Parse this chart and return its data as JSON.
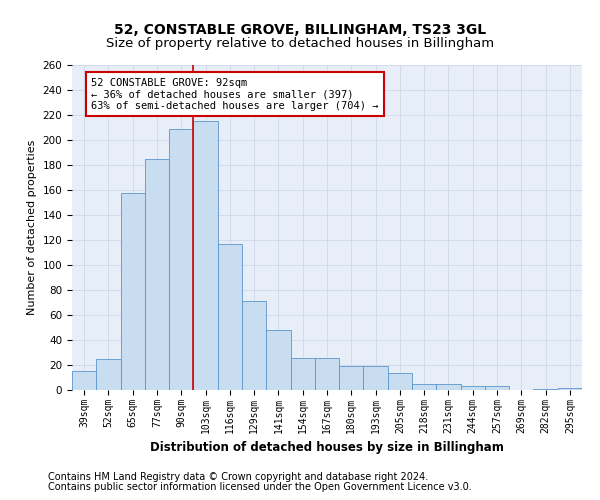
{
  "title": "52, CONSTABLE GROVE, BILLINGHAM, TS23 3GL",
  "subtitle": "Size of property relative to detached houses in Billingham",
  "xlabel": "Distribution of detached houses by size in Billingham",
  "ylabel": "Number of detached properties",
  "categories": [
    "39sqm",
    "52sqm",
    "65sqm",
    "77sqm",
    "90sqm",
    "103sqm",
    "116sqm",
    "129sqm",
    "141sqm",
    "154sqm",
    "167sqm",
    "180sqm",
    "193sqm",
    "205sqm",
    "218sqm",
    "231sqm",
    "244sqm",
    "257sqm",
    "269sqm",
    "282sqm",
    "295sqm"
  ],
  "values": [
    15,
    25,
    158,
    185,
    209,
    215,
    117,
    71,
    48,
    26,
    26,
    19,
    19,
    14,
    5,
    5,
    3,
    3,
    0,
    1,
    2
  ],
  "bar_color": "#c8ddef",
  "bar_edge_color": "#5b96cc",
  "vline_color": "#cc0000",
  "annotation_text": "52 CONSTABLE GROVE: 92sqm\n← 36% of detached houses are smaller (397)\n63% of semi-detached houses are larger (704) →",
  "annotation_box_color": "#ffffff",
  "annotation_box_edge_color": "#cc0000",
  "ylim": [
    0,
    260
  ],
  "yticks": [
    0,
    20,
    40,
    60,
    80,
    100,
    120,
    140,
    160,
    180,
    200,
    220,
    240,
    260
  ],
  "grid_color": "#c8d4e8",
  "bg_color": "#e8eef8",
  "footer1": "Contains HM Land Registry data © Crown copyright and database right 2024.",
  "footer2": "Contains public sector information licensed under the Open Government Licence v3.0.",
  "title_fontsize": 10,
  "subtitle_fontsize": 9.5,
  "axis_label_fontsize": 8,
  "tick_fontsize": 7,
  "footer_fontsize": 7
}
